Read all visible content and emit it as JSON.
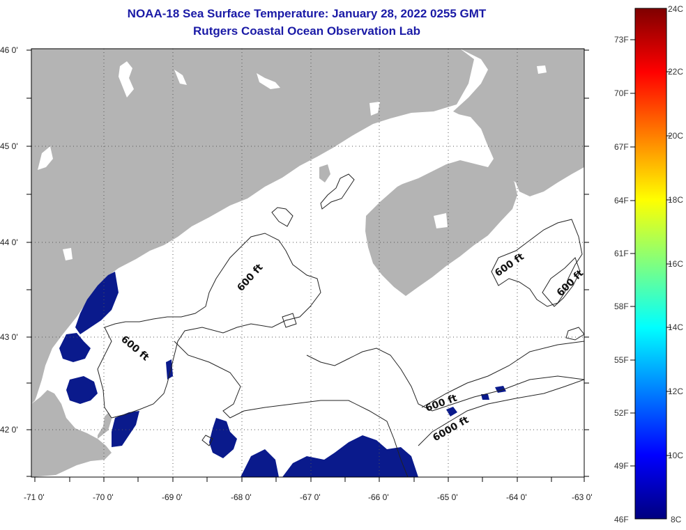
{
  "title": "NOAA-18 Sea Surface Temperature:  January 28, 2022 0255 GMT",
  "subtitle": "Rutgers Coastal Ocean Observation Lab",
  "lat_labels": [
    "46 0'",
    "45 0'",
    "44 0'",
    "43 0'",
    "42 0'"
  ],
  "lon_labels": [
    "-71 0'",
    "-70 0'",
    "-69 0'",
    "-68 0'",
    "-67 0'",
    "-66 0'",
    "-65 0'",
    "-64 0'",
    "-63 0'"
  ],
  "contour_labels": [
    "600 ft",
    "600 ft",
    "600 ft",
    "600 ft",
    "600 ft",
    "6000 ft"
  ],
  "colorbar": {
    "fahrenheit": [
      "73F",
      "70F",
      "67F",
      "64F",
      "61F",
      "58F",
      "55F",
      "52F",
      "49F",
      "46F"
    ],
    "celsius": [
      "24C",
      "22C",
      "20C",
      "18C",
      "16C",
      "14C",
      "12C",
      "10C",
      "8C"
    ]
  },
  "colors": {
    "land": "#b4b4b4",
    "cold_sst": "#0a1a8c",
    "title": "#1a1aa6"
  }
}
